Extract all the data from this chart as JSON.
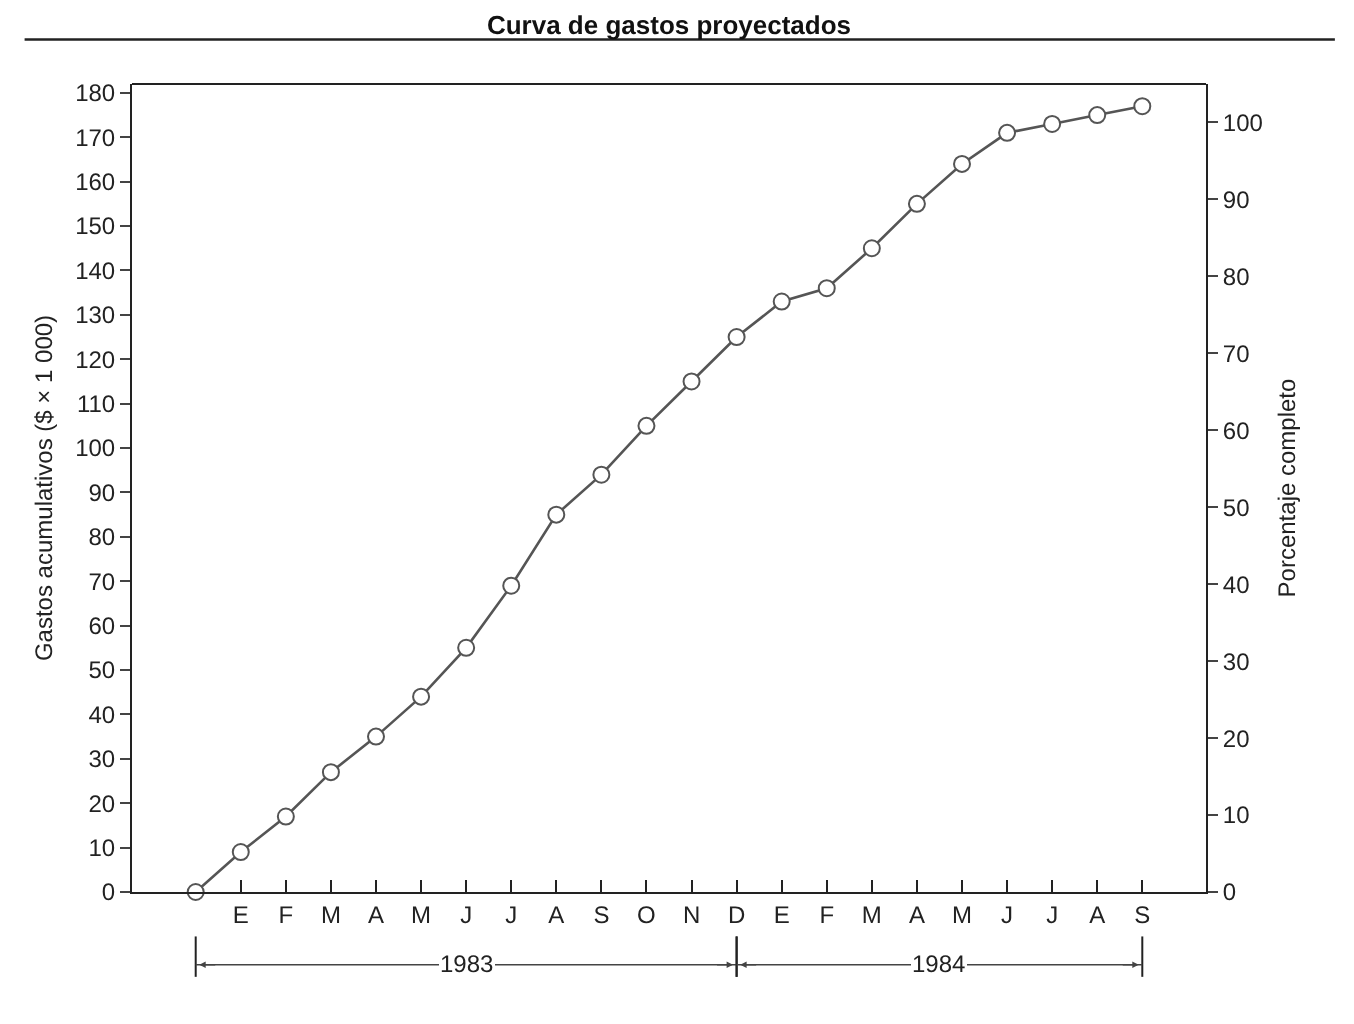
{
  "chart_data": {
    "type": "line",
    "title": "Curva de gastos proyectados",
    "ylabel": "Gastos acumulativos ($ × 1 000)",
    "y2label": "Porcentaje completo",
    "categories": [
      null,
      "E",
      "F",
      "M",
      "A",
      "M",
      "J",
      "J",
      "A",
      "S",
      "O",
      "N",
      "D",
      "E",
      "F",
      "M",
      "A",
      "M",
      "J",
      "J",
      "A",
      "S"
    ],
    "series": [
      {
        "color": "#555555",
        "values": [
          0,
          9,
          17,
          27,
          35,
          44,
          55,
          69,
          85,
          94,
          105,
          115,
          125,
          133,
          136,
          145,
          155,
          164,
          171,
          173,
          175,
          177
        ]
      }
    ],
    "annotations": [
      "1983",
      "1984"
    ],
    "ylim": [
      0,
      182
    ],
    "yticks": [
      0,
      10,
      20,
      30,
      40,
      50,
      60,
      70,
      80,
      90,
      100,
      110,
      120,
      130,
      140,
      150,
      160,
      170,
      180
    ],
    "y2lim": [
      0,
      105
    ],
    "y2ticks": [
      0,
      10,
      20,
      30,
      40,
      50,
      60,
      70,
      80,
      90,
      100
    ],
    "marker": "circle",
    "grid": false
  }
}
